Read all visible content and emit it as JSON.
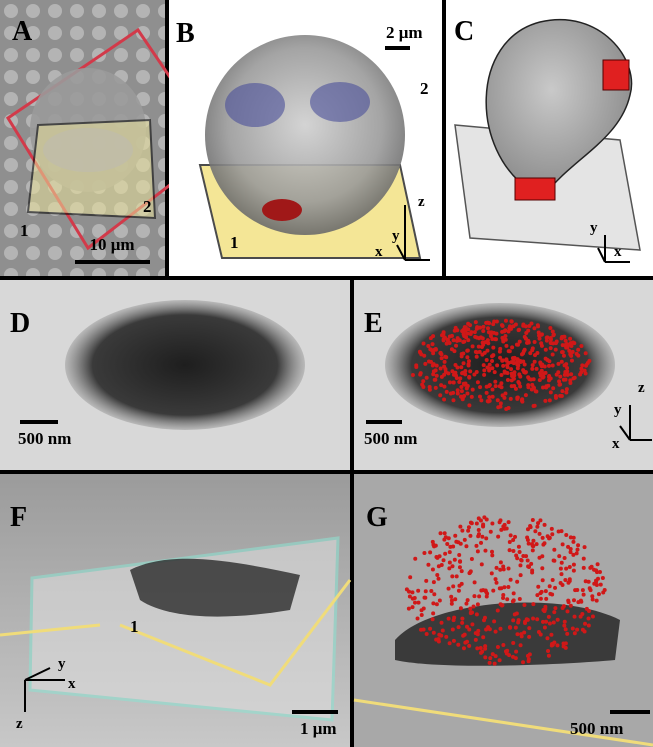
{
  "panels": [
    {
      "label": "A",
      "scale_bar": "10 μm",
      "markers": [
        "1",
        "2"
      ]
    },
    {
      "label": "B",
      "scale_bar": "2 μm",
      "markers": [
        "1",
        "2"
      ],
      "axes": [
        "x",
        "y",
        "z"
      ]
    },
    {
      "label": "C",
      "axes": [
        "x",
        "y"
      ]
    },
    {
      "label": "D",
      "scale_bar": "500 nm"
    },
    {
      "label": "E",
      "scale_bar": "500 nm",
      "axes": [
        "x",
        "y",
        "z"
      ]
    },
    {
      "label": "F",
      "scale_bar": "1 μm",
      "markers": [
        "1"
      ],
      "axes": [
        "x",
        "y",
        "z"
      ]
    },
    {
      "label": "G",
      "scale_bar": "500 nm"
    }
  ]
}
